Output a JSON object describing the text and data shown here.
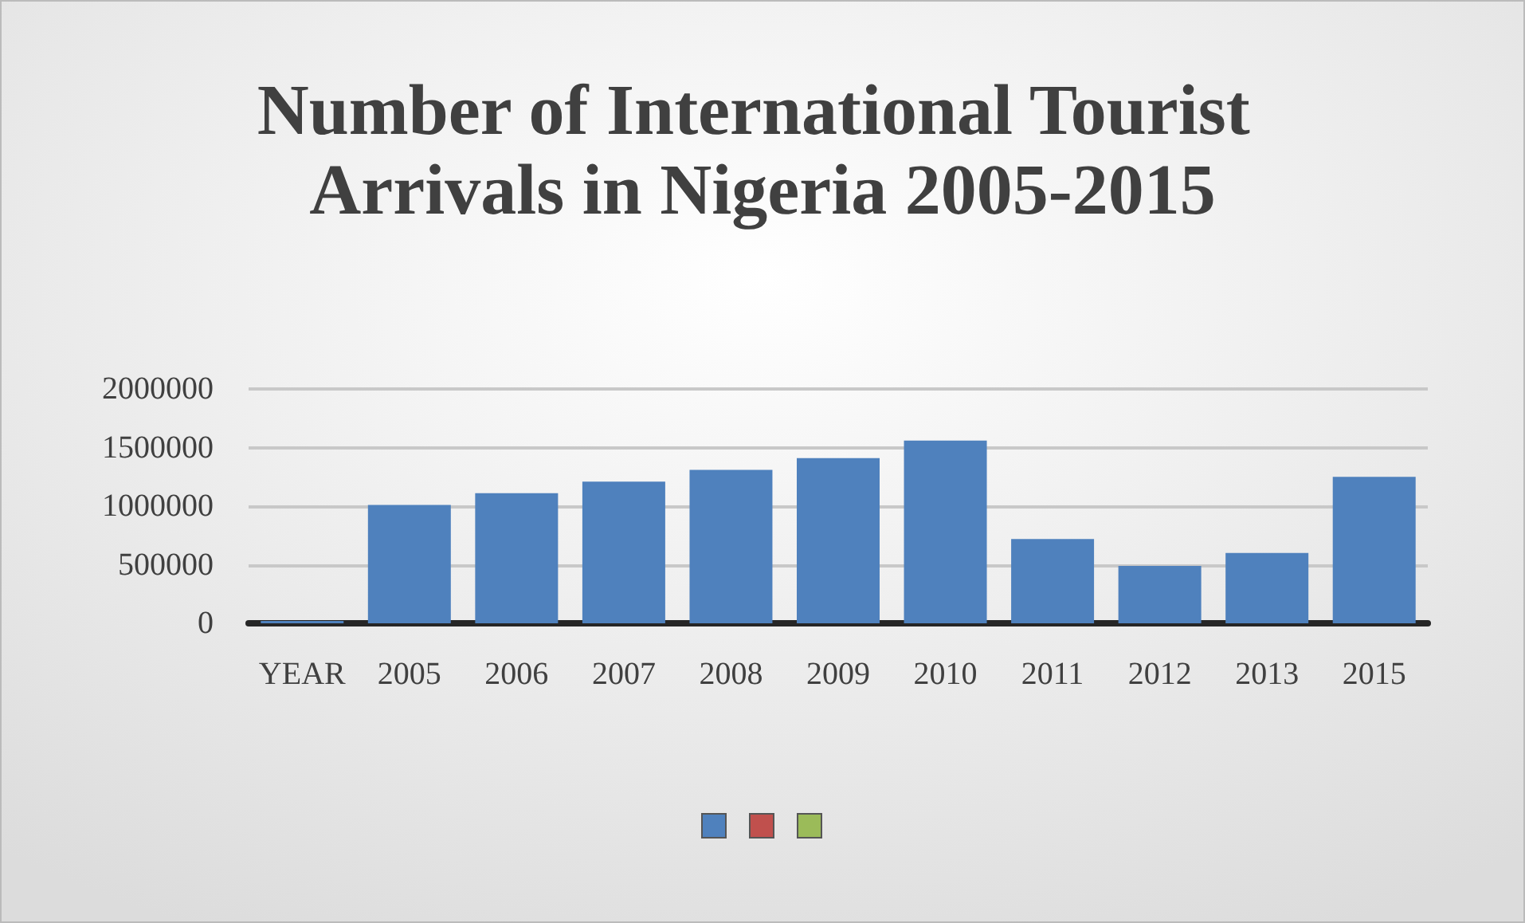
{
  "chart_data": {
    "type": "bar",
    "title": "Number of International Tourist Arrivals in Nigeria 2005-2015",
    "categories": [
      "YEAR",
      "2005",
      "2006",
      "2007",
      "2008",
      "2009",
      "2010",
      "2011",
      "2012",
      "2013",
      "2015"
    ],
    "series": [
      {
        "color": "#4f81bd",
        "values": [
          20000,
          1010000,
          1110000,
          1210000,
          1310000,
          1410000,
          1560000,
          720000,
          490000,
          600000,
          1250000
        ]
      },
      {
        "color": "#c0504d",
        "values": [
          null,
          null,
          null,
          null,
          null,
          null,
          null,
          null,
          null,
          null,
          null
        ]
      },
      {
        "color": "#9bbb59",
        "values": [
          null,
          null,
          null,
          null,
          null,
          null,
          null,
          null,
          null,
          null,
          null
        ]
      }
    ],
    "ylim": [
      0,
      2000000
    ],
    "yticks": [
      0,
      500000,
      1000000,
      1500000,
      2000000
    ],
    "grid": "y"
  }
}
